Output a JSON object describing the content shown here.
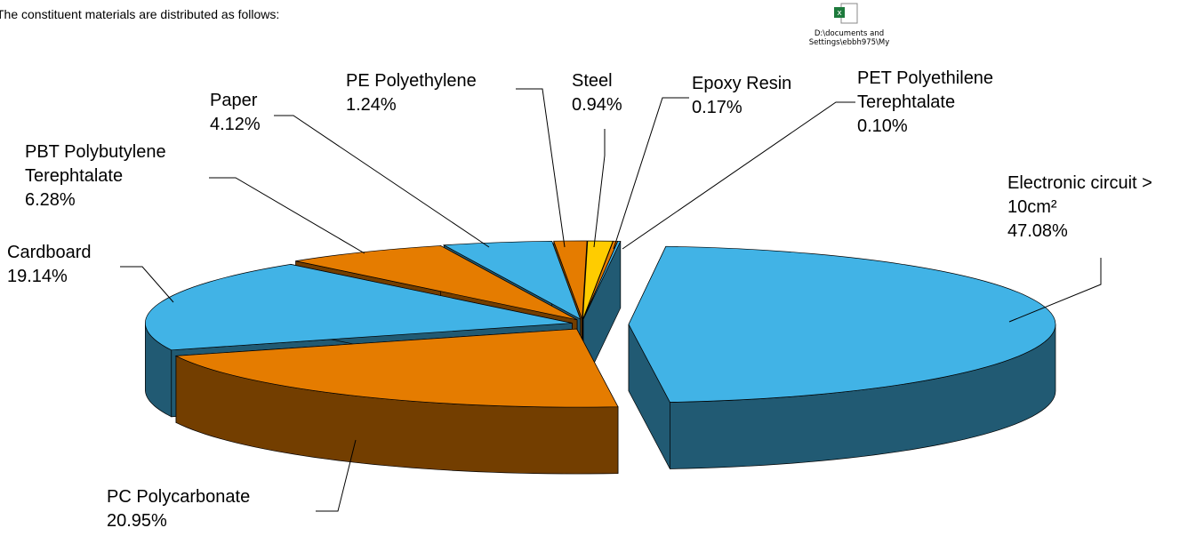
{
  "intro": "The constituent materials are distributed as follows:",
  "icon_caption": "D:\\documents and Settings\\ebbh975\\My",
  "chart_data": {
    "type": "pie",
    "categories": [
      "Electronic circuit > 10cm²",
      "PC Polycarbonate",
      "Cardboard",
      "PBT Polybutylene Terephtalate",
      "Paper",
      "PE Polyethylene",
      "Steel",
      "Epoxy Resin",
      "PET Polyethilene Terephtalate"
    ],
    "values": [
      47.08,
      20.95,
      19.14,
      6.28,
      4.12,
      1.24,
      0.94,
      0.17,
      0.1
    ],
    "value_labels": [
      "47.08%",
      "20.95%",
      "19.14%",
      "6.28%",
      "4.12%",
      "1.24%",
      "0.94%",
      "0.17%",
      "0.10%"
    ],
    "colors": [
      "#41b3e6",
      "#e57c00",
      "#41b3e6",
      "#e57c00",
      "#41b3e6",
      "#e57c00",
      "#ffcc00",
      "#e57c00",
      "#41b3e6"
    ]
  }
}
